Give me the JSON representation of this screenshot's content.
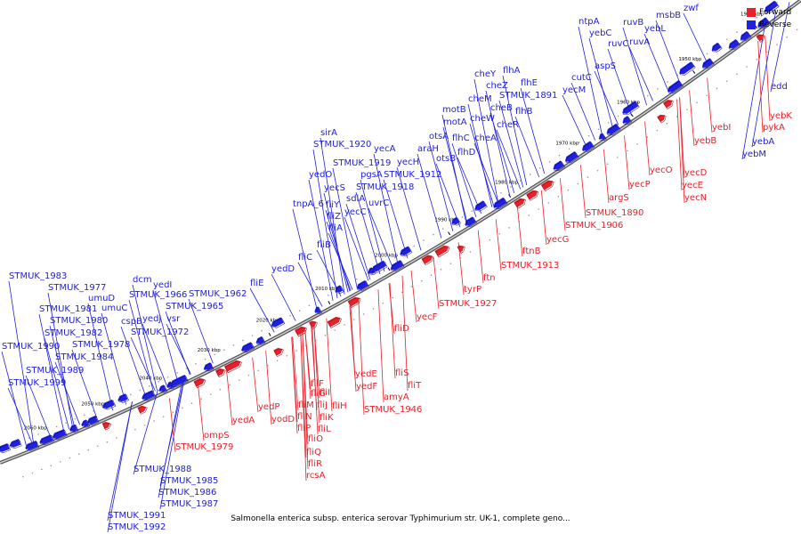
{
  "caption": "Salmonella enterica subsp. enterica serovar Typhimurium str. UK-1, complete geno...",
  "legend": [
    {
      "label": "Forward",
      "color": "#e8202a"
    },
    {
      "label": "Reverse",
      "color": "#2020e0"
    }
  ],
  "colors": {
    "forward": "#e8202a",
    "reverse": "#2020e0",
    "axis": "#888888"
  },
  "kbp_ticks": [
    "1940 kbp",
    "1950 kbp",
    "1960 kbp",
    "1970 kbp",
    "1980 kbp",
    "1990 kbp",
    "2000 kbp",
    "2010 kbp",
    "2020 kbp",
    "2030 kbp",
    "2040 kbp",
    "2050 kbp",
    "2060 kbp"
  ],
  "reverse_labels": [
    "zwf",
    "msbB",
    "yebL",
    "ruvB",
    "ruvC",
    "ruvA",
    "yebC",
    "ntpA",
    "aspS",
    "cutC",
    "yecM",
    "flhA",
    "flhE",
    "STMUK_1891",
    "flhB",
    "cheY",
    "cheZ",
    "cheB",
    "cheR",
    "cheM",
    "cheW",
    "motB",
    "motA",
    "cheA",
    "flhC",
    "flhD",
    "otsA",
    "araH",
    "otsB",
    "yecA",
    "yecH",
    "STMUK_1912",
    "sirA",
    "STMUK_1920",
    "STMUK_1919",
    "pgsA",
    "yedO",
    "yecS",
    "STMUK_1918",
    "sdiA",
    "uvrC",
    "tnpA_6",
    "fliY",
    "fliZ",
    "yecC",
    "fliA",
    "fliB",
    "fliC",
    "yedD",
    "fliE",
    "dcm",
    "yedI",
    "STMUK_1966",
    "STMUK_1962",
    "STMUK_1965",
    "yedJ",
    "vsr",
    "STMUK_1972",
    "cspB",
    "STMUK_1983",
    "STMUK_1977",
    "umuD",
    "STMUK_1981",
    "umuC",
    "STMUK_1980",
    "STMUK_1982",
    "STMUK_1978",
    "STMUK_1990",
    "STMUK_1984",
    "STMUK_1989",
    "STMUK_1999",
    "STMUK_1988",
    "STMUK_1985",
    "STMUK_1986",
    "STMUK_1987",
    "STMUK_1991",
    "STMUK_1992",
    "edd",
    "yebA",
    "yebM"
  ],
  "forward_labels": [
    "yebK",
    "pykA",
    "yebI",
    "yebB",
    "yecD",
    "yecO",
    "yecE",
    "yecN",
    "yecP",
    "argS",
    "STMUK_1890",
    "STMUK_1906",
    "yecG",
    "ftnB",
    "STMUK_1913",
    "ftn",
    "tyrP",
    "STMUK_1927",
    "yecF",
    "fliD",
    "fliS",
    "fliT",
    "amyA",
    "yedE",
    "yedF",
    "STMUK_1946",
    "fliF",
    "fliG",
    "fliH",
    "fliI",
    "fliJ",
    "fliK",
    "fliL",
    "fliM",
    "fliN",
    "fliP",
    "fliO",
    "fliQ",
    "fliR",
    "rcsA",
    "yedP",
    "yodD",
    "yedA",
    "ompS",
    "STMUK_1979"
  ]
}
